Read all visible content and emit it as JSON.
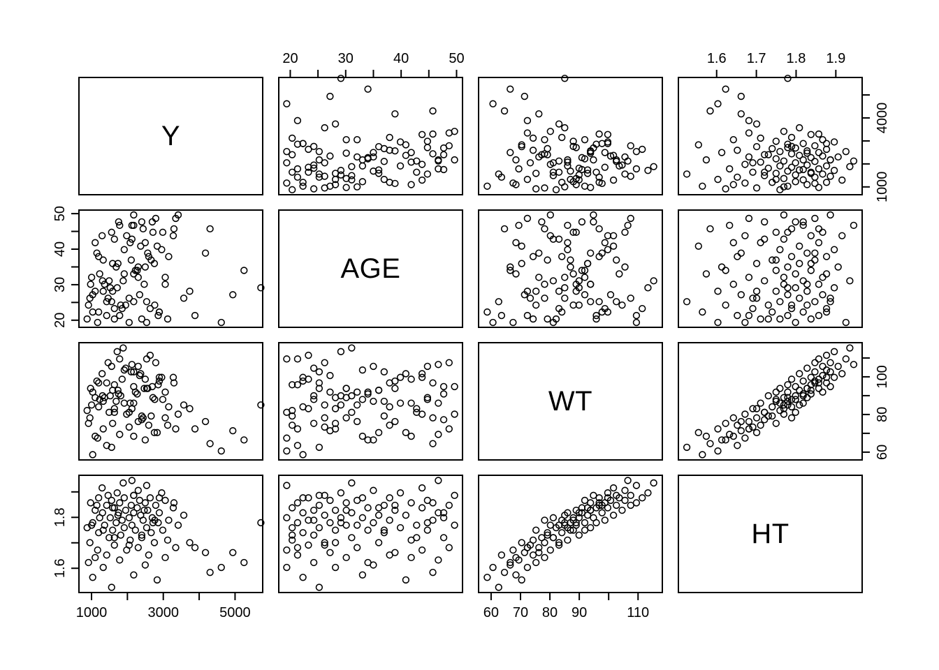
{
  "chart_data": {
    "type": "scatter-matrix",
    "title": "",
    "variables": [
      "Y",
      "AGE",
      "WT",
      "HT"
    ],
    "diagonal_labels": [
      "Y",
      "AGE",
      "WT",
      "HT"
    ],
    "grid": "off",
    "legend": "none",
    "point_style": {
      "shape": "open-circle",
      "stroke_color": "#000000",
      "fill": "none",
      "radius_px": 4.5
    },
    "frame_color": "#000000",
    "background_color": "#ffffff",
    "axis_ranges": {
      "Y": [
        630,
        5790
      ],
      "AGE": [
        17.8,
        51.2
      ],
      "WT": [
        55.5,
        118.5
      ],
      "HT": [
        1.502,
        1.968
      ]
    },
    "axes": [
      {
        "panel": "row1-col2",
        "row": 1,
        "col": 2,
        "side": "top",
        "var": "AGE",
        "ticks": [
          20,
          25,
          30,
          35,
          40,
          45,
          50
        ],
        "labels": [
          "20",
          "",
          "30",
          "",
          "40",
          "",
          "50"
        ]
      },
      {
        "panel": "row1-col4",
        "row": 1,
        "col": 4,
        "side": "top",
        "var": "HT",
        "ticks": [
          1.6,
          1.7,
          1.8,
          1.9
        ],
        "labels": [
          "1.6",
          "1.7",
          "1.8",
          "1.9"
        ]
      },
      {
        "panel": "row1-col4",
        "row": 1,
        "col": 4,
        "side": "right",
        "var": "Y",
        "ticks": [
          1000,
          2000,
          3000,
          4000,
          5000
        ],
        "labels": [
          "1000",
          "",
          "",
          "4000",
          ""
        ]
      },
      {
        "panel": "row3-col4",
        "row": 3,
        "col": 4,
        "side": "right",
        "var": "WT",
        "ticks": [
          60,
          70,
          80,
          90,
          100,
          110
        ],
        "labels": [
          "60",
          "",
          "80",
          "",
          "100",
          ""
        ]
      },
      {
        "panel": "row2-col1",
        "row": 2,
        "col": 1,
        "side": "left",
        "var": "AGE",
        "ticks": [
          20,
          25,
          30,
          35,
          40,
          45,
          50
        ],
        "labels": [
          "20",
          "",
          "30",
          "",
          "40",
          "",
          "50"
        ]
      },
      {
        "panel": "row4-col1",
        "row": 4,
        "col": 1,
        "side": "left",
        "var": "HT",
        "ticks": [
          1.6,
          1.7,
          1.8,
          1.9
        ],
        "labels": [
          "1.6",
          "",
          "1.8",
          ""
        ]
      },
      {
        "panel": "row4-col1",
        "row": 4,
        "col": 1,
        "side": "bottom",
        "var": "Y",
        "ticks": [
          1000,
          2000,
          3000,
          4000,
          5000
        ],
        "labels": [
          "1000",
          "",
          "3000",
          "",
          "5000"
        ]
      },
      {
        "panel": "row4-col3",
        "row": 4,
        "col": 3,
        "side": "bottom",
        "var": "WT",
        "ticks": [
          60,
          70,
          80,
          90,
          100,
          110
        ],
        "labels": [
          "60",
          "70",
          "80",
          "90",
          "",
          "110"
        ]
      }
    ],
    "observations": {
      "columns": [
        "Y",
        "AGE",
        "WT",
        "HT"
      ],
      "rows": [
        [
          1520,
          25,
          62,
          1.52
        ],
        [
          2820,
          41,
          70,
          1.55
        ],
        [
          980,
          22,
          58,
          1.56
        ],
        [
          2150,
          33,
          68,
          1.57
        ],
        [
          4330,
          46,
          64,
          1.58
        ],
        [
          4650,
          19,
          60,
          1.6
        ],
        [
          1280,
          28,
          72,
          1.6
        ],
        [
          2480,
          35,
          66,
          1.61
        ],
        [
          860,
          24,
          75,
          1.62
        ],
        [
          1750,
          47,
          69,
          1.63
        ],
        [
          3050,
          30,
          78,
          1.64
        ],
        [
          1380,
          21,
          63,
          1.65
        ],
        [
          2580,
          38,
          74,
          1.65
        ],
        [
          4980,
          27,
          71,
          1.66
        ],
        [
          1950,
          44,
          80,
          1.67
        ],
        [
          1120,
          19,
          67,
          1.67
        ],
        [
          2280,
          32,
          76,
          1.68
        ],
        [
          3350,
          49,
          72,
          1.68
        ],
        [
          1600,
          23,
          83,
          1.69
        ],
        [
          2740,
          36,
          70,
          1.7
        ],
        [
          900,
          26,
          78,
          1.7
        ],
        [
          2050,
          42,
          86,
          1.71
        ],
        [
          3120,
          20,
          74,
          1.71
        ],
        [
          1450,
          31,
          81,
          1.72
        ],
        [
          2380,
          48,
          77,
          1.72
        ],
        [
          5780,
          29,
          85,
          1.78
        ],
        [
          1780,
          24,
          90,
          1.73
        ],
        [
          2650,
          37,
          79,
          1.74
        ],
        [
          1150,
          22,
          84,
          1.74
        ],
        [
          2980,
          45,
          88,
          1.75
        ],
        [
          1550,
          28,
          75,
          1.75
        ],
        [
          2200,
          34,
          92,
          1.75
        ],
        [
          820,
          20,
          82,
          1.76
        ],
        [
          1880,
          40,
          86,
          1.76
        ],
        [
          2520,
          25,
          94,
          1.76
        ],
        [
          3420,
          50,
          80,
          1.77
        ],
        [
          1320,
          30,
          89,
          1.77
        ],
        [
          2100,
          43,
          83,
          1.77
        ],
        [
          2850,
          21,
          96,
          1.78
        ],
        [
          1650,
          35,
          87,
          1.78
        ],
        [
          980,
          27,
          92,
          1.78
        ],
        [
          2420,
          46,
          78,
          1.79
        ],
        [
          1820,
          23,
          99,
          1.79
        ],
        [
          3150,
          38,
          84,
          1.79
        ],
        [
          1480,
          29,
          90,
          1.8
        ],
        [
          2680,
          48,
          95,
          1.8
        ],
        [
          2020,
          19,
          81,
          1.8
        ],
        [
          1180,
          33,
          88,
          1.8
        ],
        [
          2350,
          41,
          102,
          1.81
        ],
        [
          3580,
          26,
          85,
          1.81
        ],
        [
          1700,
          36,
          93,
          1.81
        ],
        [
          2880,
          22,
          98,
          1.82
        ],
        [
          1260,
          31,
          90,
          1.82
        ],
        [
          2150,
          47,
          86,
          1.82
        ],
        [
          1920,
          24,
          105,
          1.83
        ],
        [
          2550,
          39,
          94,
          1.83
        ],
        [
          1050,
          28,
          89,
          1.83
        ],
        [
          3280,
          44,
          100,
          1.84
        ],
        [
          1600,
          20,
          96,
          1.84
        ],
        [
          2250,
          34,
          91,
          1.84
        ],
        [
          2780,
          49,
          108,
          1.85
        ],
        [
          1380,
          25,
          97,
          1.85
        ],
        [
          2080,
          37,
          103,
          1.85
        ],
        [
          920,
          30,
          94,
          1.86
        ],
        [
          2480,
          42,
          99,
          1.86
        ],
        [
          1750,
          21,
          110,
          1.86
        ],
        [
          3050,
          32,
          92,
          1.87
        ],
        [
          1520,
          45,
          106,
          1.87
        ],
        [
          2320,
          27,
          101,
          1.87
        ],
        [
          1150,
          38,
          97,
          1.88
        ],
        [
          2620,
          23,
          112,
          1.88
        ],
        [
          1880,
          33,
          104,
          1.88
        ],
        [
          2150,
          50,
          95,
          1.89
        ],
        [
          1420,
          26,
          108,
          1.89
        ],
        [
          2950,
          40,
          100,
          1.9
        ],
        [
          1680,
          29,
          114,
          1.9
        ],
        [
          2280,
          35,
          106,
          1.91
        ],
        [
          1250,
          44,
          102,
          1.92
        ],
        [
          2520,
          19,
          110,
          1.93
        ],
        [
          1850,
          31,
          116,
          1.94
        ],
        [
          2100,
          47,
          107,
          1.95
        ],
        [
          3750,
          28,
          83,
          1.7
        ],
        [
          4200,
          39,
          76,
          1.66
        ],
        [
          1050,
          42,
          68,
          1.64
        ],
        [
          2750,
          24,
          88,
          1.79
        ],
        [
          1550,
          36,
          93,
          1.84
        ],
        [
          2380,
          20,
          79,
          1.73
        ],
        [
          3300,
          46,
          97,
          1.86
        ],
        [
          950,
          32,
          85,
          1.77
        ],
        [
          2020,
          26,
          73,
          1.69
        ],
        [
          1720,
          48,
          91,
          1.82
        ],
        [
          2880,
          22,
          100,
          1.88
        ],
        [
          1280,
          37,
          87,
          1.75
        ],
        [
          2450,
          30,
          94,
          1.83
        ],
        [
          1600,
          43,
          81,
          1.72
        ],
        [
          2150,
          25,
          103,
          1.89
        ],
        [
          5300,
          34,
          66,
          1.62
        ],
        [
          3900,
          21,
          72,
          1.68
        ],
        [
          1100,
          39,
          98,
          1.85
        ],
        [
          2700,
          45,
          89,
          1.78
        ]
      ]
    }
  }
}
